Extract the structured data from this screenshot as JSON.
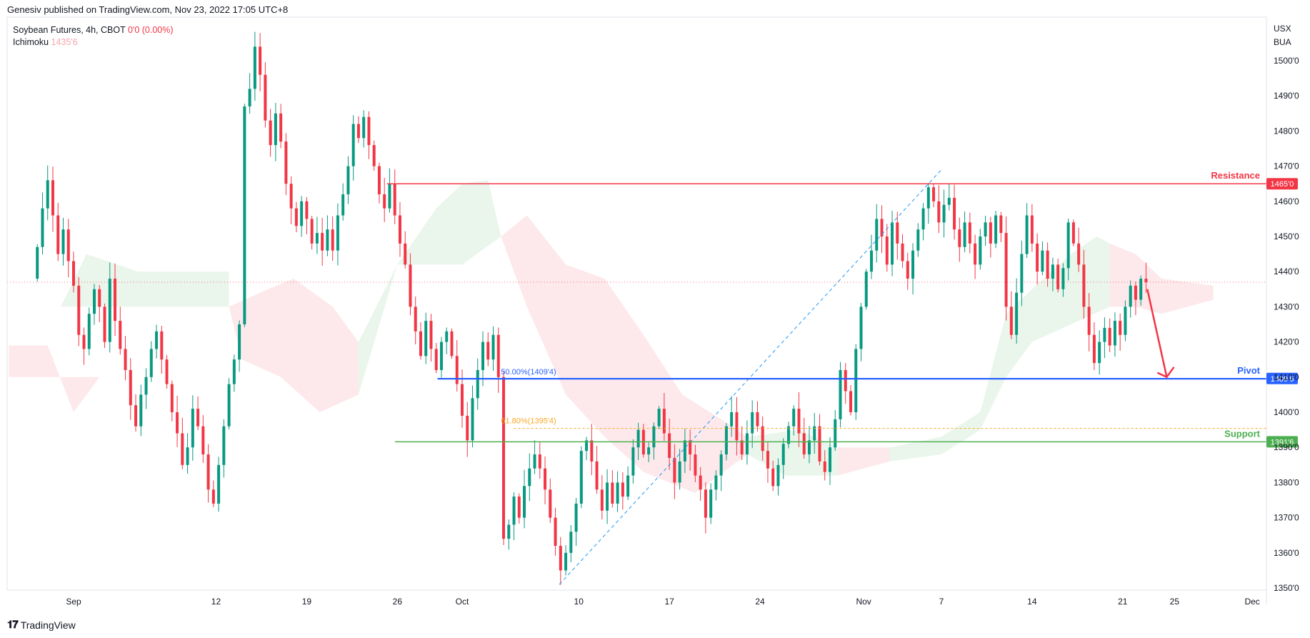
{
  "header": {
    "author": "Genesiv",
    "published_text": "published on TradingView.com, Nov 23, 2022 17:05 UTC+8"
  },
  "legend": {
    "symbol": "Soybean Futures, 4h, CBOT",
    "change": "0'0 (0.00%)",
    "indicator_name": "Ichimoku",
    "indicator_value": "1435'6"
  },
  "price_scale": {
    "currency": "USX",
    "unit": "BUA"
  },
  "footer": {
    "brand": "TradingView"
  },
  "colors": {
    "up": "#26a69a",
    "up_candle": "#089981",
    "down": "#f23645",
    "resistance": "#f23645",
    "pivot": "#2962ff",
    "support": "#4caf50",
    "fib618": "#f9a825",
    "cloud_green": "#e8f5e9",
    "cloud_red": "#fde7e9"
  },
  "chart_data": {
    "type": "candlestick",
    "timeframe": "4h",
    "ylim": [
      13480,
      15070
    ],
    "y_ticks": [
      "1500'0",
      "1490'0",
      "1480'0",
      "1470'0",
      "1460'0",
      "1450'0",
      "1440'0",
      "1430'0",
      "1420'0",
      "1410'0",
      "1400'0",
      "1390'0",
      "1380'0",
      "1370'0",
      "1360'0",
      "1350'0"
    ],
    "y_tick_values": [
      15000,
      14900,
      14800,
      14700,
      14600,
      14500,
      14400,
      14300,
      14200,
      14100,
      14000,
      13900,
      13800,
      13700,
      13600,
      13500
    ],
    "x_ticks": [
      "Sep",
      "12",
      "19",
      "26",
      "Oct",
      "10",
      "17",
      "24",
      "Nov",
      "7",
      "14",
      "21",
      "25",
      "Dec"
    ],
    "x_tick_days": [
      0,
      11,
      18,
      25,
      30,
      39,
      46,
      53,
      61,
      67,
      74,
      81,
      85,
      91
    ],
    "last_price": 14370,
    "levels": [
      {
        "name": "Resistance",
        "value": 14650,
        "label": "Resistance",
        "price_label": "1465'0",
        "color": "#f23645"
      },
      {
        "name": "Pivot",
        "value": 14096,
        "label": "Pivot",
        "price_label": "1409'6",
        "color": "#2962ff"
      },
      {
        "name": "Support",
        "value": 13916,
        "label": "Support",
        "price_label": "1391'6",
        "color": "#4caf50"
      }
    ],
    "fib_levels": [
      {
        "label": "50.00%(1409'4)",
        "value": 14094,
        "color": "#2962ff"
      },
      {
        "label": "61.80%(1395'4)",
        "value": 13954,
        "color": "#f9a825"
      }
    ],
    "trendline": {
      "from": {
        "day": 37.5,
        "price": 13510
      },
      "to": {
        "day": 67,
        "price": 14690
      }
    },
    "arrow": {
      "from": {
        "day": 82.9,
        "price": 14350
      },
      "to": {
        "day": 84.4,
        "price": 14100
      }
    },
    "candles": [
      [
        -2.8,
        14380,
        14470
      ],
      [
        -2.4,
        14470,
        14580
      ],
      [
        -2.0,
        14580,
        14660
      ],
      [
        -1.6,
        14660,
        14560
      ],
      [
        -1.2,
        14560,
        14450
      ],
      [
        -0.8,
        14450,
        14520
      ],
      [
        -0.4,
        14520,
        14430
      ],
      [
        0.0,
        14430,
        14360
      ],
      [
        0.4,
        14360,
        14220
      ],
      [
        0.8,
        14220,
        14180
      ],
      [
        1.2,
        14180,
        14280
      ],
      [
        1.6,
        14280,
        14350
      ],
      [
        2.0,
        14350,
        14300
      ],
      [
        2.4,
        14300,
        14200
      ],
      [
        2.8,
        14200,
        14380
      ],
      [
        3.2,
        14380,
        14260
      ],
      [
        3.6,
        14260,
        14180
      ],
      [
        4.0,
        14180,
        14120
      ],
      [
        4.4,
        14120,
        14020
      ],
      [
        4.8,
        14020,
        13960
      ],
      [
        5.2,
        13960,
        14050
      ],
      [
        5.6,
        14050,
        14100
      ],
      [
        6.0,
        14100,
        14180
      ],
      [
        6.4,
        14180,
        14230
      ],
      [
        6.8,
        14230,
        14150
      ],
      [
        7.2,
        14150,
        14080
      ],
      [
        7.6,
        14080,
        14000
      ],
      [
        8.0,
        14000,
        13940
      ],
      [
        8.4,
        13940,
        13850
      ],
      [
        8.8,
        13850,
        13900
      ],
      [
        9.2,
        13900,
        14010
      ],
      [
        9.6,
        14010,
        13960
      ],
      [
        10.0,
        13960,
        13880
      ],
      [
        10.4,
        13880,
        13780
      ],
      [
        10.8,
        13780,
        13740
      ],
      [
        11.2,
        13740,
        13850
      ],
      [
        11.6,
        13850,
        13960
      ],
      [
        12.0,
        13960,
        14080
      ],
      [
        12.4,
        14080,
        14150
      ],
      [
        12.8,
        14150,
        14250
      ],
      [
        13.2,
        14250,
        14870
      ],
      [
        13.6,
        14870,
        14920
      ],
      [
        14.0,
        14920,
        15040
      ],
      [
        14.4,
        15040,
        14960
      ],
      [
        14.8,
        14960,
        14830
      ],
      [
        15.2,
        14830,
        14760
      ],
      [
        15.6,
        14760,
        14850
      ],
      [
        16.0,
        14850,
        14770
      ],
      [
        16.4,
        14770,
        14650
      ],
      [
        16.8,
        14650,
        14580
      ],
      [
        17.2,
        14580,
        14530
      ],
      [
        17.6,
        14530,
        14600
      ],
      [
        18.0,
        14600,
        14550
      ],
      [
        18.4,
        14550,
        14480
      ],
      [
        18.8,
        14480,
        14510
      ],
      [
        19.2,
        14510,
        14460
      ],
      [
        19.6,
        14460,
        14520
      ],
      [
        20.0,
        14520,
        14460
      ],
      [
        20.4,
        14460,
        14560
      ],
      [
        20.8,
        14560,
        14620
      ],
      [
        21.2,
        14620,
        14700
      ],
      [
        21.6,
        14700,
        14820
      ],
      [
        22.0,
        14820,
        14780
      ],
      [
        22.4,
        14780,
        14840
      ],
      [
        22.8,
        14840,
        14760
      ],
      [
        23.2,
        14760,
        14700
      ],
      [
        23.6,
        14700,
        14620
      ],
      [
        24.0,
        14620,
        14580
      ],
      [
        24.4,
        14580,
        14650
      ],
      [
        24.8,
        14650,
        14560
      ],
      [
        25.2,
        14560,
        14480
      ],
      [
        25.6,
        14480,
        14420
      ],
      [
        26.0,
        14420,
        14300
      ],
      [
        26.4,
        14300,
        14230
      ],
      [
        26.8,
        14230,
        14160
      ],
      [
        27.2,
        14160,
        14260
      ],
      [
        27.6,
        14260,
        14180
      ],
      [
        28.0,
        14180,
        14120
      ],
      [
        28.4,
        14120,
        14200
      ],
      [
        28.8,
        14200,
        14230
      ],
      [
        29.2,
        14230,
        14160
      ],
      [
        29.6,
        14160,
        14080
      ],
      [
        30.0,
        14080,
        13990
      ],
      [
        30.4,
        13990,
        13920
      ],
      [
        30.8,
        13920,
        14040
      ],
      [
        31.2,
        14040,
        14120
      ],
      [
        31.6,
        14120,
        14200
      ],
      [
        32.0,
        14200,
        14150
      ],
      [
        32.4,
        14150,
        14220
      ],
      [
        32.8,
        14220,
        14100
      ],
      [
        33.2,
        14100,
        13640
      ],
      [
        33.6,
        13640,
        13680
      ],
      [
        34.0,
        13680,
        13760
      ],
      [
        34.4,
        13760,
        13700
      ],
      [
        34.8,
        13700,
        13790
      ],
      [
        35.2,
        13790,
        13840
      ],
      [
        35.6,
        13840,
        13880
      ],
      [
        36.0,
        13880,
        13840
      ],
      [
        36.4,
        13840,
        13780
      ],
      [
        36.8,
        13780,
        13700
      ],
      [
        37.2,
        13700,
        13620
      ],
      [
        37.6,
        13620,
        13550
      ],
      [
        38.0,
        13550,
        13600
      ],
      [
        38.4,
        13600,
        13660
      ],
      [
        38.8,
        13660,
        13740
      ],
      [
        39.2,
        13740,
        13890
      ],
      [
        39.6,
        13890,
        13920
      ],
      [
        40.0,
        13920,
        13860
      ],
      [
        40.4,
        13860,
        13780
      ],
      [
        40.8,
        13780,
        13720
      ],
      [
        41.2,
        13720,
        13800
      ],
      [
        41.6,
        13800,
        13740
      ],
      [
        42.0,
        13740,
        13800
      ],
      [
        42.4,
        13800,
        13760
      ],
      [
        42.8,
        13760,
        13820
      ],
      [
        43.2,
        13820,
        13900
      ],
      [
        43.6,
        13900,
        13950
      ],
      [
        44.0,
        13950,
        13880
      ],
      [
        44.4,
        13880,
        13900
      ],
      [
        44.8,
        13900,
        13960
      ],
      [
        45.2,
        13960,
        14010
      ],
      [
        45.6,
        14010,
        13940
      ],
      [
        46.0,
        13940,
        13870
      ],
      [
        46.4,
        13870,
        13800
      ],
      [
        46.8,
        13800,
        13860
      ],
      [
        47.2,
        13860,
        13920
      ],
      [
        47.6,
        13920,
        13880
      ],
      [
        48.0,
        13880,
        13820
      ],
      [
        48.4,
        13820,
        13780
      ],
      [
        48.8,
        13780,
        13700
      ],
      [
        49.2,
        13700,
        13780
      ],
      [
        49.6,
        13780,
        13820
      ],
      [
        50.0,
        13820,
        13880
      ],
      [
        50.4,
        13880,
        13960
      ],
      [
        50.8,
        13960,
        14000
      ],
      [
        51.2,
        14000,
        13920
      ],
      [
        51.6,
        13920,
        13880
      ],
      [
        52.0,
        13880,
        13940
      ],
      [
        52.4,
        13940,
        14000
      ],
      [
        52.8,
        14000,
        13960
      ],
      [
        53.2,
        13960,
        13890
      ],
      [
        53.6,
        13890,
        13840
      ],
      [
        54.0,
        13840,
        13790
      ],
      [
        54.4,
        13790,
        13850
      ],
      [
        54.8,
        13850,
        13910
      ],
      [
        55.2,
        13910,
        13960
      ],
      [
        55.6,
        13960,
        14010
      ],
      [
        56.0,
        14010,
        13940
      ],
      [
        56.4,
        13940,
        13880
      ],
      [
        56.8,
        13880,
        13920
      ],
      [
        57.2,
        13920,
        13960
      ],
      [
        57.6,
        13960,
        13860
      ],
      [
        58.0,
        13860,
        13830
      ],
      [
        58.4,
        13830,
        13900
      ],
      [
        58.8,
        13900,
        13980
      ],
      [
        59.2,
        13980,
        14120
      ],
      [
        59.6,
        14120,
        14060
      ],
      [
        60.0,
        14060,
        14000
      ],
      [
        60.4,
        14000,
        14180
      ],
      [
        60.8,
        14180,
        14300
      ],
      [
        61.2,
        14300,
        14400
      ],
      [
        61.6,
        14400,
        14460
      ],
      [
        62.0,
        14460,
        14550
      ],
      [
        62.4,
        14550,
        14500
      ],
      [
        62.8,
        14500,
        14420
      ],
      [
        63.2,
        14420,
        14540
      ],
      [
        63.6,
        14540,
        14480
      ],
      [
        64.0,
        14480,
        14430
      ],
      [
        64.4,
        14430,
        14380
      ],
      [
        64.8,
        14380,
        14460
      ],
      [
        65.2,
        14460,
        14520
      ],
      [
        65.6,
        14520,
        14580
      ],
      [
        66.0,
        14580,
        14640
      ],
      [
        66.4,
        14640,
        14600
      ],
      [
        66.8,
        14600,
        14540
      ],
      [
        67.2,
        14540,
        14590
      ],
      [
        67.6,
        14590,
        14610
      ],
      [
        68.0,
        14610,
        14520
      ],
      [
        68.4,
        14520,
        14470
      ],
      [
        68.8,
        14470,
        14540
      ],
      [
        69.2,
        14540,
        14480
      ],
      [
        69.6,
        14480,
        14420
      ],
      [
        70.0,
        14420,
        14500
      ],
      [
        70.4,
        14500,
        14540
      ],
      [
        70.8,
        14540,
        14480
      ],
      [
        71.2,
        14480,
        14560
      ],
      [
        71.6,
        14560,
        14510
      ],
      [
        72.0,
        14510,
        14300
      ],
      [
        72.4,
        14300,
        14220
      ],
      [
        72.8,
        14220,
        14340
      ],
      [
        73.2,
        14340,
        14450
      ],
      [
        73.6,
        14450,
        14560
      ],
      [
        74.0,
        14560,
        14480
      ],
      [
        74.4,
        14480,
        14400
      ],
      [
        74.8,
        14400,
        14460
      ],
      [
        75.2,
        14460,
        14380
      ],
      [
        75.6,
        14380,
        14420
      ],
      [
        76.0,
        14420,
        14350
      ],
      [
        76.4,
        14350,
        14410
      ],
      [
        76.8,
        14410,
        14540
      ],
      [
        77.2,
        14540,
        14480
      ],
      [
        77.6,
        14480,
        14420
      ],
      [
        78.0,
        14420,
        14300
      ],
      [
        78.4,
        14300,
        14220
      ],
      [
        78.8,
        14220,
        14140
      ],
      [
        79.2,
        14140,
        14200
      ],
      [
        79.6,
        14200,
        14240
      ],
      [
        80.0,
        14240,
        14190
      ],
      [
        80.4,
        14190,
        14260
      ],
      [
        80.8,
        14260,
        14220
      ],
      [
        81.2,
        14220,
        14300
      ],
      [
        81.6,
        14300,
        14360
      ],
      [
        82.0,
        14360,
        14320
      ],
      [
        82.4,
        14320,
        14380
      ],
      [
        82.8,
        14380,
        14370
      ]
    ]
  }
}
